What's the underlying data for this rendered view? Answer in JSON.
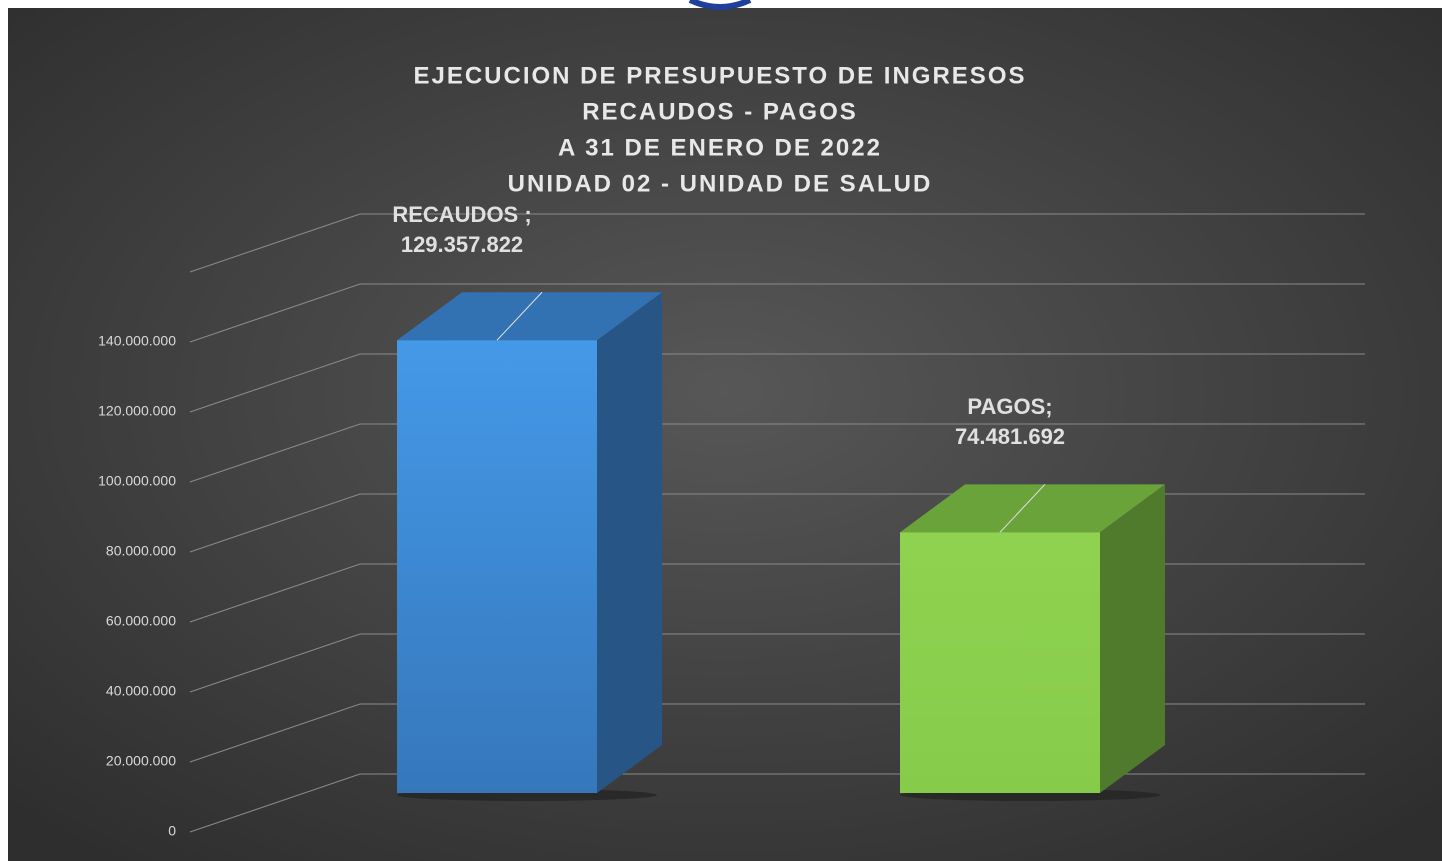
{
  "chart_data": {
    "type": "bar3d",
    "title": [
      "EJECUCION DE PRESUPUESTO DE INGRESOS",
      "RECAUDOS - PAGOS",
      "A 31 DE ENERO DE 2022",
      "UNIDAD 02 - UNIDAD DE SALUD"
    ],
    "categories": [
      "RECAUDOS ;",
      "PAGOS;"
    ],
    "values": [
      129357822,
      74481692
    ],
    "value_labels": [
      "129.357.822",
      "74.481.692"
    ],
    "colors": [
      "#3f8ee0",
      "#86cc4a"
    ],
    "ylim": [
      0,
      160000000
    ],
    "yticks": [
      0,
      {
        "value": 20000000,
        "label": "20.000.000"
      },
      {
        "value": 40000000,
        "label": "40.000.000"
      },
      {
        "value": 60000000,
        "label": "60.000.000"
      },
      {
        "value": 80000000,
        "label": "80.000.000"
      },
      {
        "value": 100000000,
        "label": "100.000.000"
      },
      {
        "value": 120000000,
        "label": "120.000.000"
      },
      {
        "value": 140000000,
        "label": "140.000.000"
      }
    ],
    "grid": true
  }
}
